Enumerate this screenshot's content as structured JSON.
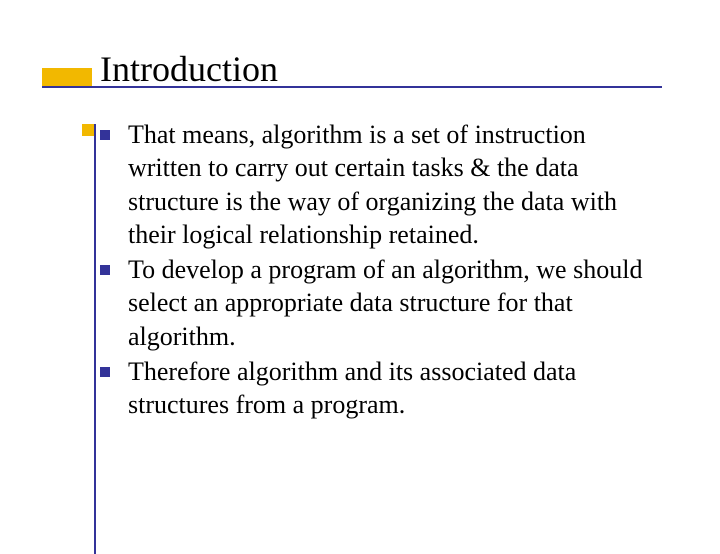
{
  "slide": {
    "title": "Introduction",
    "title_color": "#000000",
    "title_fontsize": 36,
    "accent_color": "#f2b800",
    "line_color": "#333399",
    "bullet_marker_color": "#333399",
    "background_color": "#ffffff",
    "body_fontsize": 26,
    "body_color": "#000000",
    "bullets": [
      "That means, algorithm is a set of instruction written to carry out certain tasks & the data structure is the way of organizing the data with their logical relationship retained.",
      "To develop a program of an algorithm, we should select an appropriate data structure for that algorithm.",
      "Therefore algorithm and its associated data structures from a program."
    ]
  }
}
